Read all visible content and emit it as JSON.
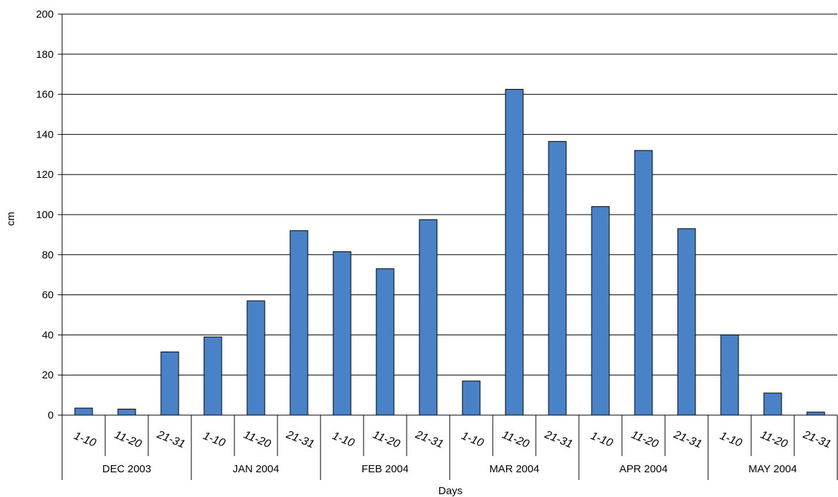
{
  "chart_data": {
    "type": "bar",
    "groups": [
      {
        "label": "DEC 2003",
        "categories": [
          "1-10",
          "11-20",
          "21-31"
        ],
        "values": [
          3.5,
          3,
          31.5
        ]
      },
      {
        "label": "JAN 2004",
        "categories": [
          "1-10",
          "11-20",
          "21-31"
        ],
        "values": [
          39,
          57,
          92
        ]
      },
      {
        "label": "FEB 2004",
        "categories": [
          "1-10",
          "11-20",
          "21-31"
        ],
        "values": [
          81.5,
          73,
          97.5
        ]
      },
      {
        "label": "MAR 2004",
        "categories": [
          "1-10",
          "11-20",
          "21-31"
        ],
        "values": [
          17,
          162.5,
          136.5
        ]
      },
      {
        "label": "APR 2004",
        "categories": [
          "1-10",
          "11-20",
          "21-31"
        ],
        "values": [
          104,
          132,
          93
        ]
      },
      {
        "label": "MAY 2004",
        "categories": [
          "1-10",
          "11-20",
          "21-31"
        ],
        "values": [
          40,
          11,
          1.5
        ]
      }
    ],
    "xlabel": "Days",
    "ylabel": "cm",
    "ylim": [
      0,
      200
    ],
    "yticks": [
      0,
      20,
      40,
      60,
      80,
      100,
      120,
      140,
      160,
      180,
      200
    ],
    "grid": true,
    "bar_color": "#4a82c8",
    "bar_stroke": "#000000"
  }
}
